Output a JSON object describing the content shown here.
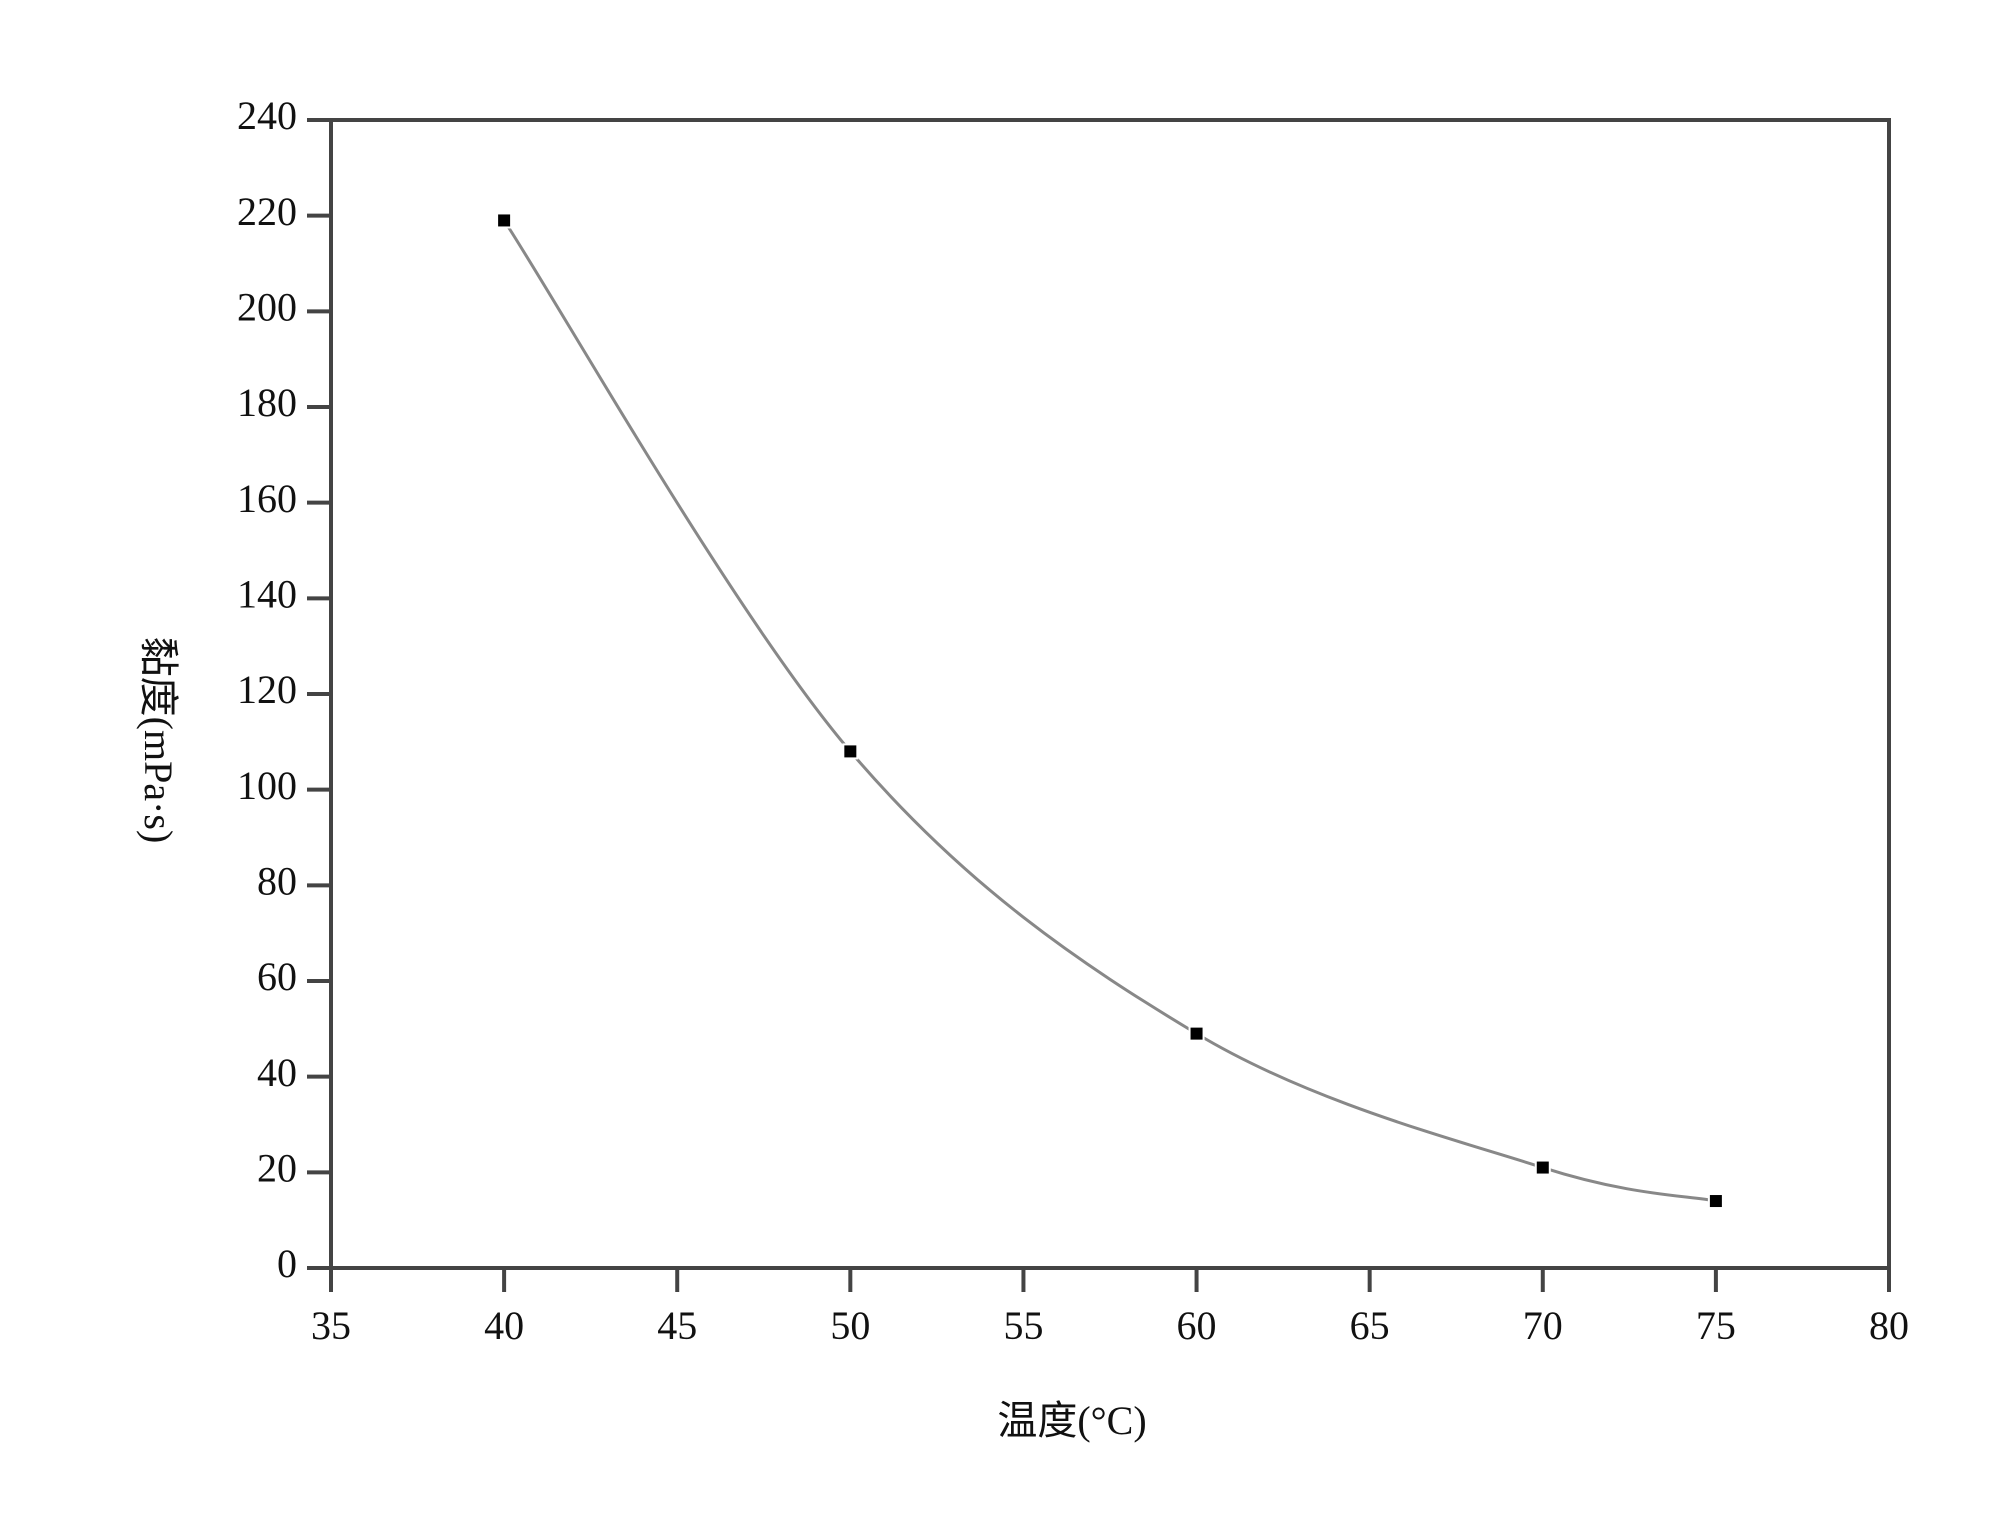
{
  "chart_data": {
    "type": "line",
    "x_label": "温度(°C)",
    "y_label": "黏度(mPa·s)",
    "x": [
      40,
      50,
      60,
      70,
      75
    ],
    "series": [
      {
        "values": [
          219,
          108,
          49,
          21,
          14
        ],
        "color": "#888888",
        "marker_color": "#000000"
      }
    ],
    "markers": true,
    "smooth": true,
    "xlim": [
      35,
      80
    ],
    "xticks": [
      35,
      40,
      45,
      50,
      55,
      60,
      65,
      70,
      75,
      80
    ],
    "ylim": [
      0,
      240
    ],
    "yticks": [
      0,
      20,
      40,
      60,
      80,
      100,
      120,
      140,
      160,
      180,
      200,
      220,
      240
    ],
    "grid": false
  }
}
